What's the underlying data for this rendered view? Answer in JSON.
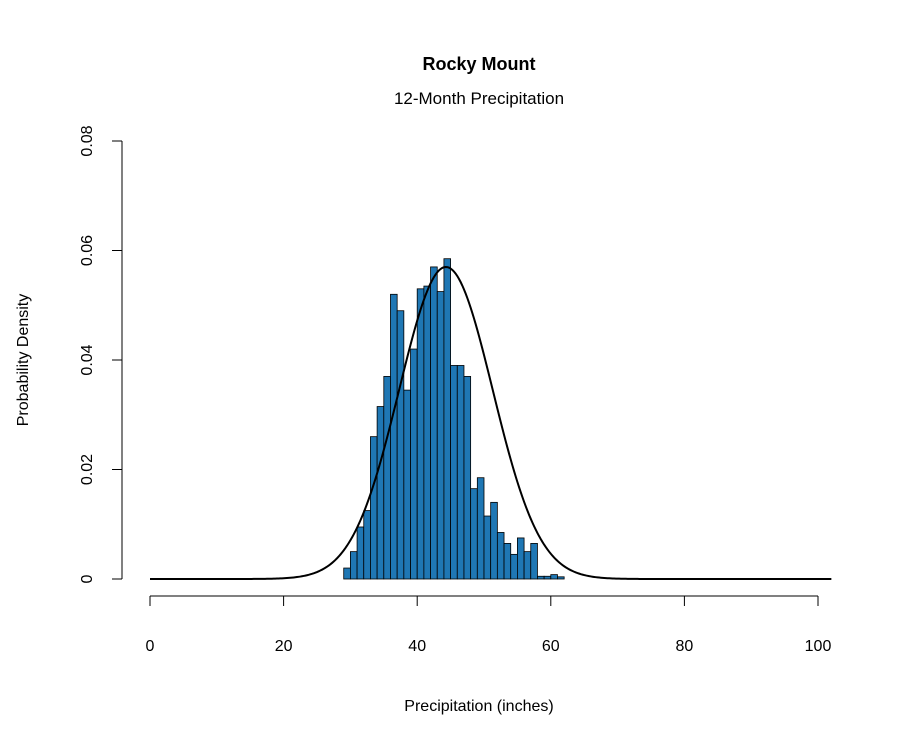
{
  "chart_data": {
    "type": "bar",
    "title": "Rocky Mount",
    "subtitle": "12-Month Precipitation",
    "xlabel": "Precipitation (inches)",
    "ylabel": "Probability Density",
    "xlim": [
      0,
      102
    ],
    "ylim": [
      0,
      0.08
    ],
    "x_ticks": [
      "0",
      "20",
      "40",
      "60",
      "80",
      "100"
    ],
    "y_ticks": [
      "0",
      "0.02",
      "0.04",
      "0.06",
      "0.08"
    ],
    "bar_color": "#1f77b4",
    "bin_width": 1,
    "bins_start": [
      29,
      30,
      31,
      32,
      33,
      34,
      35,
      36,
      37,
      38,
      39,
      40,
      41,
      42,
      43,
      44,
      45,
      46,
      47,
      48,
      49,
      50,
      51,
      52,
      53,
      54,
      55,
      56,
      57,
      58,
      59,
      60,
      61,
      62,
      63,
      64,
      65,
      66,
      67,
      68
    ],
    "density": [
      0.002,
      0.005,
      0.0095,
      0.0125,
      0.026,
      0.0315,
      0.037,
      0.052,
      0.049,
      0.0345,
      0.042,
      0.053,
      0.0535,
      0.057,
      0.0525,
      0.0585,
      0.039,
      0.039,
      0.037,
      0.0165,
      0.0185,
      0.0115,
      0.014,
      0.0085,
      0.0065,
      0.0045,
      0.0075,
      0.005,
      0.0065,
      0.0005,
      0.0005,
      0.0008,
      0.0004,
      0.0,
      0.0,
      0.0,
      0.0,
      0.0,
      0.0,
      0.0
    ],
    "normal_curve": {
      "mean": 44.3,
      "sd": 7.0
    }
  }
}
